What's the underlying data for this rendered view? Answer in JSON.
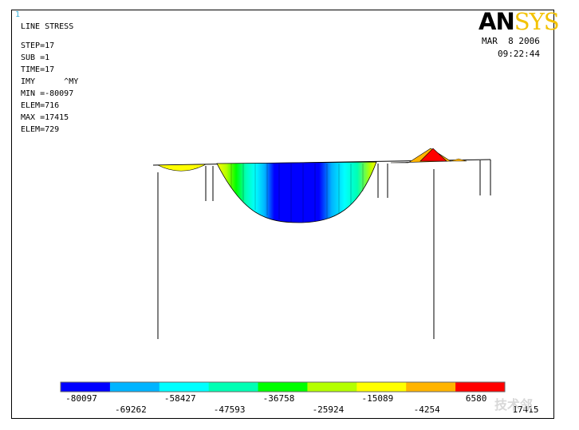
{
  "window_number": "1",
  "header": {
    "title": "LINE STRESS",
    "step": "STEP=17",
    "sub": "SUB =1",
    "time": "TIME=17",
    "items": "IMY      ^MY",
    "min": "MIN =-80097",
    "elem_min": "ELEM=716",
    "max": "MAX =17415",
    "elem_max": "ELEM=729"
  },
  "logo": {
    "part1": "AN",
    "part2": "SYS"
  },
  "timestamp": {
    "date": "MAR  8 2006",
    "time": "09:22:44"
  },
  "legend": {
    "colors": [
      "#0000ff",
      "#00b4ff",
      "#00ffff",
      "#00ffb4",
      "#00ff00",
      "#b4ff00",
      "#ffff00",
      "#ffb400",
      "#ff0000"
    ],
    "labels_top": [
      "-80097",
      "-58427",
      "-36758",
      "-15089",
      "6580"
    ],
    "labels_bottom": [
      "-69262",
      "-47593",
      "-25924",
      "-4254",
      "17415"
    ]
  },
  "watermark": "技术邻"
}
